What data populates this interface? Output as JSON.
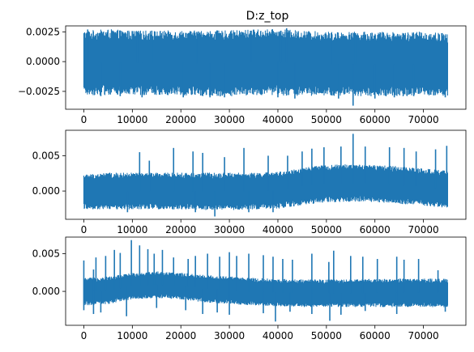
{
  "chart_data": [
    {
      "type": "line",
      "title": "D:z_top",
      "xlabel": "",
      "ylabel": "",
      "x_range": [
        0,
        75000
      ],
      "xlim": [
        -3750,
        78750
      ],
      "ylim": [
        -0.004,
        0.003
      ],
      "xticks": [
        0,
        10000,
        20000,
        30000,
        40000,
        50000,
        60000,
        70000
      ],
      "xtick_labels": [
        "0",
        "10000",
        "20000",
        "30000",
        "40000",
        "50000",
        "60000",
        "70000"
      ],
      "yticks": [
        0.0025,
        0.0,
        -0.0025
      ],
      "ytick_labels": [
        "0.0025",
        "0.0000",
        "−0.0025"
      ],
      "color": "#1f77b4",
      "grid": false,
      "series": [
        {
          "band": {
            "x": [
              0,
              5000,
              10000,
              15000,
              20000,
              25000,
              30000,
              35000,
              40000,
              45000,
              50000,
              55000,
              60000,
              65000,
              70000,
              75000
            ],
            "upper": [
              0.0022,
              0.0023,
              0.0022,
              0.0022,
              0.0022,
              0.0022,
              0.0022,
              0.0023,
              0.0023,
              0.0022,
              0.0021,
              0.0021,
              0.0021,
              0.0021,
              0.0021,
              0.002
            ],
            "lower": [
              -0.0024,
              -0.0024,
              -0.0024,
              -0.0024,
              -0.0024,
              -0.0025,
              -0.0025,
              -0.0024,
              -0.0024,
              -0.0025,
              -0.0025,
              -0.0025,
              -0.0025,
              -0.0025,
              -0.0025,
              -0.0025
            ]
          },
          "peaks": [
            [
              800,
              0.0027
            ],
            [
              11000,
              0.0025
            ],
            [
              14000,
              0.0026
            ],
            [
              34500,
              0.0026
            ],
            [
              41800,
              0.0028
            ],
            [
              40600,
              0.0026
            ],
            [
              23300,
              0.0025
            ],
            [
              51000,
              0.0024
            ],
            [
              56000,
              0.0024
            ]
          ],
          "troughs": [
            [
              3500,
              -0.0029
            ],
            [
              7500,
              -0.0029
            ],
            [
              12000,
              -0.003
            ],
            [
              20500,
              -0.003
            ],
            [
              26000,
              -0.003
            ],
            [
              29000,
              -0.003
            ],
            [
              40000,
              -0.003
            ],
            [
              43500,
              -0.0031
            ],
            [
              52500,
              -0.0031
            ],
            [
              55500,
              -0.0037
            ],
            [
              60000,
              -0.0031
            ],
            [
              64000,
              -0.003
            ],
            [
              68000,
              -0.0029
            ],
            [
              74500,
              -0.003
            ]
          ]
        }
      ]
    },
    {
      "type": "line",
      "title": "",
      "xlabel": "",
      "ylabel": "",
      "x_range": [
        0,
        75000
      ],
      "xlim": [
        -3750,
        78750
      ],
      "ylim": [
        -0.004,
        0.0086
      ],
      "xticks": [
        0,
        10000,
        20000,
        30000,
        40000,
        50000,
        60000,
        70000
      ],
      "xtick_labels": [
        "0",
        "10000",
        "20000",
        "30000",
        "40000",
        "50000",
        "60000",
        "70000"
      ],
      "yticks": [
        0.005,
        0.0
      ],
      "ytick_labels": [
        "0.005",
        "0.000"
      ],
      "color": "#1f77b4",
      "grid": false,
      "series": [
        {
          "band": {
            "x": [
              0,
              5000,
              10000,
              15000,
              20000,
              25000,
              30000,
              35000,
              40000,
              45000,
              50000,
              55000,
              60000,
              65000,
              70000,
              75000
            ],
            "upper": [
              0.002,
              0.0022,
              0.0022,
              0.0022,
              0.0022,
              0.0022,
              0.0022,
              0.0022,
              0.0023,
              0.0029,
              0.0033,
              0.0034,
              0.0033,
              0.0031,
              0.0028,
              0.0025
            ],
            "lower": [
              -0.0022,
              -0.0022,
              -0.0022,
              -0.0022,
              -0.0022,
              -0.0023,
              -0.0023,
              -0.0022,
              -0.0021,
              -0.0016,
              -0.0012,
              -0.0011,
              -0.0012,
              -0.0014,
              -0.0017,
              -0.002
            ]
          },
          "peaks": [
            [
              11500,
              0.0055
            ],
            [
              13500,
              0.0043
            ],
            [
              18500,
              0.0061
            ],
            [
              22500,
              0.0056
            ],
            [
              24500,
              0.0054
            ],
            [
              29000,
              0.0048
            ],
            [
              33000,
              0.0061
            ],
            [
              38000,
              0.005
            ],
            [
              42000,
              0.005
            ],
            [
              45000,
              0.0056
            ],
            [
              47000,
              0.006
            ],
            [
              49500,
              0.0062
            ],
            [
              53000,
              0.0063
            ],
            [
              55500,
              0.0081
            ],
            [
              58000,
              0.0063
            ],
            [
              63000,
              0.0062
            ],
            [
              66000,
              0.0061
            ],
            [
              68500,
              0.0056
            ],
            [
              72500,
              0.0059
            ],
            [
              74800,
              0.0064
            ]
          ],
          "troughs": [
            [
              9000,
              -0.003
            ],
            [
              23000,
              -0.003
            ],
            [
              27000,
              -0.0036
            ],
            [
              34000,
              -0.003
            ],
            [
              39000,
              -0.003
            ]
          ]
        }
      ]
    },
    {
      "type": "line",
      "title": "",
      "xlabel": "",
      "ylabel": "",
      "x_range": [
        0,
        75000
      ],
      "xlim": [
        -3750,
        78750
      ],
      "ylim": [
        -0.0045,
        0.0072
      ],
      "xticks": [
        0,
        10000,
        20000,
        30000,
        40000,
        50000,
        60000,
        70000
      ],
      "xtick_labels": [
        "0",
        "10000",
        "20000",
        "30000",
        "40000",
        "50000",
        "60000",
        "70000"
      ],
      "yticks": [
        0.005,
        0.0
      ],
      "ytick_labels": [
        "0.005",
        "0.000"
      ],
      "color": "#1f77b4",
      "grid": false,
      "series": [
        {
          "band": {
            "x": [
              0,
              5000,
              10000,
              15000,
              20000,
              25000,
              30000,
              35000,
              40000,
              45000,
              50000,
              55000,
              60000,
              65000,
              70000,
              75000
            ],
            "upper": [
              0.0015,
              0.0017,
              0.0022,
              0.0024,
              0.0022,
              0.0019,
              0.0017,
              0.0015,
              0.0014,
              0.0013,
              0.0013,
              0.0013,
              0.0014,
              0.0014,
              0.0014,
              0.0014
            ],
            "lower": [
              -0.0016,
              -0.0014,
              -0.0008,
              -0.0006,
              -0.0008,
              -0.0012,
              -0.0014,
              -0.0016,
              -0.0017,
              -0.0018,
              -0.0018,
              -0.0018,
              -0.0018,
              -0.0018,
              -0.0018,
              -0.0018
            ]
          },
          "peaks": [
            [
              0,
              0.0041
            ],
            [
              2000,
              0.0029
            ],
            [
              2500,
              0.0045
            ],
            [
              4500,
              0.0047
            ],
            [
              6300,
              0.0055
            ],
            [
              7500,
              0.0051
            ],
            [
              9800,
              0.0068
            ],
            [
              11500,
              0.0061
            ],
            [
              13200,
              0.0056
            ],
            [
              14500,
              0.005
            ],
            [
              16200,
              0.0055
            ],
            [
              18500,
              0.0045
            ],
            [
              21500,
              0.0043
            ],
            [
              23000,
              0.0047
            ],
            [
              25500,
              0.005
            ],
            [
              28000,
              0.0046
            ],
            [
              30000,
              0.0052
            ],
            [
              31500,
              0.0047
            ],
            [
              34000,
              0.005
            ],
            [
              37000,
              0.0048
            ],
            [
              39000,
              0.0046
            ],
            [
              41000,
              0.0043
            ],
            [
              43000,
              0.0042
            ],
            [
              47000,
              0.005
            ],
            [
              50500,
              0.0039
            ],
            [
              51500,
              0.0054
            ],
            [
              55000,
              0.0047
            ],
            [
              57500,
              0.0046
            ],
            [
              60500,
              0.0043
            ],
            [
              64500,
              0.0046
            ],
            [
              66000,
              0.0042
            ],
            [
              69000,
              0.0043
            ],
            [
              73000,
              0.0028
            ]
          ],
          "troughs": [
            [
              0,
              -0.0025
            ],
            [
              2000,
              -0.003
            ],
            [
              3500,
              -0.0028
            ],
            [
              8800,
              -0.0033
            ],
            [
              15000,
              -0.0022
            ],
            [
              21000,
              -0.0025
            ],
            [
              24500,
              -0.003
            ],
            [
              27500,
              -0.0028
            ],
            [
              30000,
              -0.0031
            ],
            [
              37000,
              -0.0029
            ],
            [
              39500,
              -0.004
            ],
            [
              42500,
              -0.0027
            ],
            [
              47000,
              -0.003
            ],
            [
              50700,
              -0.0039
            ],
            [
              53000,
              -0.0031
            ],
            [
              58000,
              -0.0026
            ],
            [
              64500,
              -0.003
            ],
            [
              74500,
              -0.0027
            ]
          ]
        }
      ]
    }
  ]
}
